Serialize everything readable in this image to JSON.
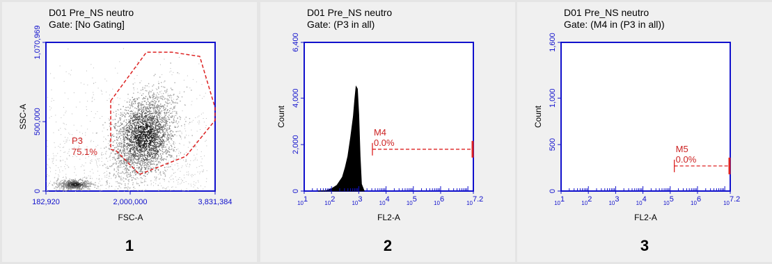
{
  "colors": {
    "background": "#e5e5e5",
    "panel": "#f0f0f0",
    "axis_blue": "#1010cc",
    "gate_red": "#dd2020",
    "histogram": "#000000",
    "density": "#555555"
  },
  "chart_data": [
    {
      "type": "scatter",
      "panel_number": "1",
      "title_line1": "D01 Pre_NS neutro",
      "title_line2": "Gate: [No Gating]",
      "xlabel": "FSC-A",
      "ylabel": "SSC-A",
      "xlim": [
        182920,
        3831384
      ],
      "ylim": [
        0,
        1070969
      ],
      "x_ticks": [
        "182,920",
        "2,000,000",
        "3,831,384"
      ],
      "y_ticks": [
        "0",
        "500,000",
        "1,070,969"
      ],
      "populations": [
        {
          "center": [
            2300000,
            400000
          ],
          "spread": [
            350000,
            150000
          ],
          "density": "high"
        },
        {
          "center": [
            800000,
            50000
          ],
          "spread": [
            150000,
            20000
          ],
          "density": "high"
        }
      ],
      "gates": [
        {
          "name": "P3",
          "percent": "75.1%",
          "polygon": [
            [
              1580000,
              650000
            ],
            [
              2350000,
              1000000
            ],
            [
              2900000,
              1000000
            ],
            [
              3500000,
              970000
            ],
            [
              3831384,
              600000
            ],
            [
              3831384,
              510000
            ],
            [
              3200000,
              250000
            ],
            [
              2200000,
              120000
            ],
            [
              1700000,
              290000
            ],
            [
              1580000,
              300000
            ]
          ]
        }
      ]
    },
    {
      "type": "area",
      "panel_number": "2",
      "title_line1": "D01 Pre_NS neutro",
      "title_line2": "Gate: (P3 in all)",
      "xlabel": "FL2-A",
      "ylabel": "Count",
      "x_scale": "log",
      "xlim": [
        10,
        15848932
      ],
      "ylim": [
        0,
        6400
      ],
      "x_ticks": [
        {
          "base": "10",
          "exp": "1"
        },
        {
          "base": "10",
          "exp": "2"
        },
        {
          "base": "10",
          "exp": "3"
        },
        {
          "base": "10",
          "exp": "4"
        },
        {
          "base": "10",
          "exp": "5"
        },
        {
          "base": "10",
          "exp": "6"
        },
        {
          "base": "10",
          "exp": "7.2"
        }
      ],
      "y_ticks": [
        "0",
        "2,000",
        "4,000",
        "6,400"
      ],
      "histogram": {
        "x_log10": [
          1.5,
          1.8,
          2.0,
          2.2,
          2.4,
          2.5,
          2.6,
          2.7,
          2.8,
          2.85,
          2.9,
          2.95,
          3.0,
          3.05,
          3.1,
          3.2
        ],
        "counts": [
          0,
          20,
          100,
          250,
          600,
          1000,
          1500,
          2300,
          3200,
          3900,
          4500,
          4400,
          3300,
          1500,
          300,
          0
        ]
      },
      "markers": [
        {
          "name": "M4",
          "percent": "0.0%",
          "x_range_log10": [
            3.5,
            7.2
          ],
          "y": 1800
        }
      ]
    },
    {
      "type": "area",
      "panel_number": "3",
      "title_line1": "D01 Pre_NS neutro",
      "title_line2": "Gate: (M4 in (P3 in all))",
      "xlabel": "FL2-A",
      "ylabel": "Count",
      "x_scale": "log",
      "xlim": [
        10,
        15848932
      ],
      "ylim": [
        0,
        1600
      ],
      "x_ticks": [
        {
          "base": "10",
          "exp": "1"
        },
        {
          "base": "10",
          "exp": "2"
        },
        {
          "base": "10",
          "exp": "3"
        },
        {
          "base": "10",
          "exp": "4"
        },
        {
          "base": "10",
          "exp": "5"
        },
        {
          "base": "10",
          "exp": "6"
        },
        {
          "base": "10",
          "exp": "7.2"
        }
      ],
      "y_ticks": [
        "0",
        "500",
        "1,000",
        "1,600"
      ],
      "histogram": {
        "x_log10": [],
        "counts": []
      },
      "markers": [
        {
          "name": "M5",
          "percent": "0.0%",
          "x_range_log10": [
            5.15,
            7.2
          ],
          "y": 270
        }
      ]
    }
  ]
}
